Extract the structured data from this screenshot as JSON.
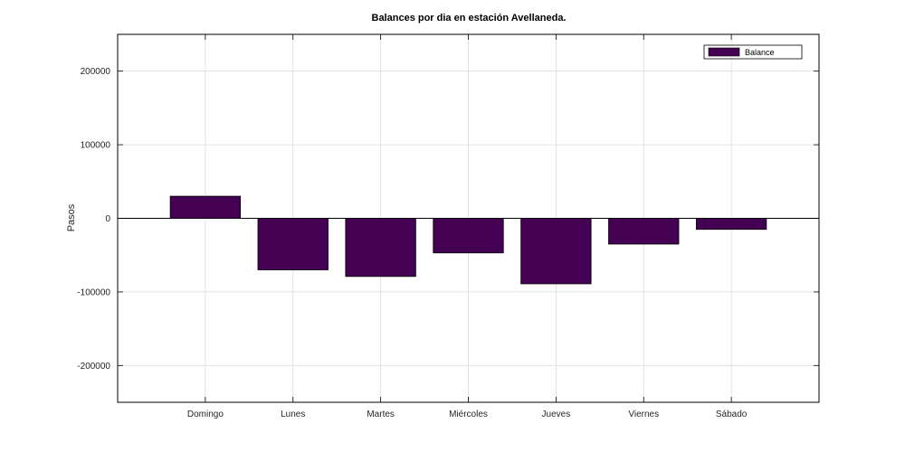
{
  "chart_data": {
    "type": "bar",
    "title": "Balances por dia en estación Avellaneda.",
    "xlabel": "",
    "ylabel": "Pasos",
    "categories": [
      "Domingo",
      "Lunes",
      "Martes",
      "Miércoles",
      "Jueves",
      "Viernes",
      "Sábado"
    ],
    "series": [
      {
        "name": "Balance",
        "values": [
          30000,
          -70000,
          -79000,
          -47000,
          -89000,
          -35000,
          -15000
        ],
        "color": "#440154"
      }
    ],
    "ylim": [
      -250000,
      250000
    ],
    "yticks": [
      -200000,
      -100000,
      0,
      100000,
      200000
    ],
    "ytick_labels": [
      "-200000",
      "-100000",
      "0",
      "100000",
      "200000"
    ],
    "grid": true,
    "legend_position": "top-right"
  }
}
